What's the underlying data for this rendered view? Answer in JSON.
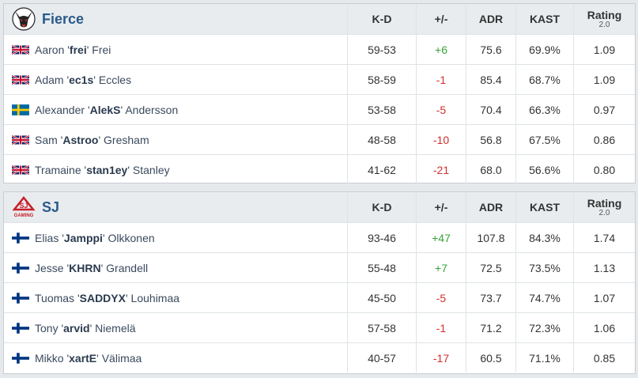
{
  "columns": {
    "kd": "K-D",
    "pm": "+/-",
    "adr": "ADR",
    "kast": "KAST",
    "rating": "Rating",
    "rating_ver": "2.0"
  },
  "teams": [
    {
      "name": "Fierce",
      "players": [
        {
          "flag": "uk-flag",
          "first": "Aaron '",
          "nick": "frei",
          "last": "' Frei",
          "kd": "59-53",
          "pm": "+6",
          "adr": "75.6",
          "kast": "69.9%",
          "rating": "1.09"
        },
        {
          "flag": "uk-flag",
          "first": "Adam '",
          "nick": "ec1s",
          "last": "' Eccles",
          "kd": "58-59",
          "pm": "-1",
          "adr": "85.4",
          "kast": "68.7%",
          "rating": "1.09"
        },
        {
          "flag": "sweden-flag",
          "first": "Alexander '",
          "nick": "AlekS",
          "last": "' Andersson",
          "kd": "53-58",
          "pm": "-5",
          "adr": "70.4",
          "kast": "66.3%",
          "rating": "0.97"
        },
        {
          "flag": "uk-flag",
          "first": "Sam '",
          "nick": "Astroo",
          "last": "' Gresham",
          "kd": "48-58",
          "pm": "-10",
          "adr": "56.8",
          "kast": "67.5%",
          "rating": "0.86"
        },
        {
          "flag": "uk-flag",
          "first": "Tramaine '",
          "nick": "stan1ey",
          "last": "' Stanley",
          "kd": "41-62",
          "pm": "-21",
          "adr": "68.0",
          "kast": "56.6%",
          "rating": "0.80"
        }
      ]
    },
    {
      "name": "SJ",
      "logo_text": "GAMING",
      "players": [
        {
          "flag": "finland-flag",
          "first": "Elias '",
          "nick": "Jamppi",
          "last": "' Olkkonen",
          "kd": "93-46",
          "pm": "+47",
          "adr": "107.8",
          "kast": "84.3%",
          "rating": "1.74"
        },
        {
          "flag": "finland-flag",
          "first": "Jesse '",
          "nick": "KHRN",
          "last": "' Grandell",
          "kd": "55-48",
          "pm": "+7",
          "adr": "72.5",
          "kast": "73.5%",
          "rating": "1.13"
        },
        {
          "flag": "finland-flag",
          "first": "Tuomas '",
          "nick": "SADDYX",
          "last": "' Louhimaa",
          "kd": "45-50",
          "pm": "-5",
          "adr": "73.7",
          "kast": "74.7%",
          "rating": "1.07"
        },
        {
          "flag": "finland-flag",
          "first": "Tony '",
          "nick": "arvid",
          "last": "' Niemelä",
          "kd": "57-58",
          "pm": "-1",
          "adr": "71.2",
          "kast": "72.3%",
          "rating": "1.06"
        },
        {
          "flag": "finland-flag",
          "first": "Mikko '",
          "nick": "xartE",
          "last": "' Välimaa",
          "kd": "40-57",
          "pm": "-17",
          "adr": "60.5",
          "kast": "71.1%",
          "rating": "0.85"
        }
      ]
    }
  ],
  "colors": {
    "positive": "#3aa33a",
    "negative": "#d12f2f",
    "team_name": "#2a5a8a"
  }
}
